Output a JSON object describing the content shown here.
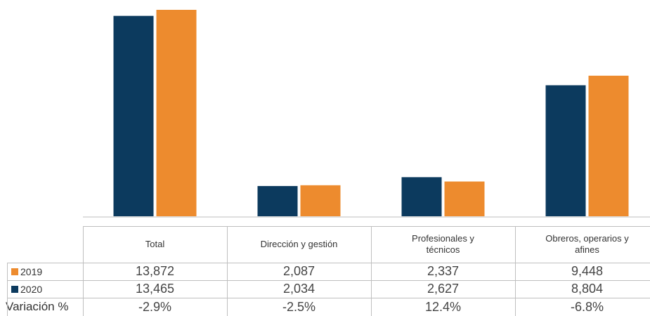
{
  "chart_data": {
    "type": "bar",
    "categories": [
      "Total",
      "Dirección y gestión",
      "Profesionales y técnicos",
      "Obreros, operarios y afines"
    ],
    "category_lines": [
      [
        "Total"
      ],
      [
        "Dirección y gestión"
      ],
      [
        "Profesionales y",
        "técnicos"
      ],
      [
        "Obreros, operarios y",
        "afines"
      ]
    ],
    "series": [
      {
        "name": "2019",
        "values": [
          13872,
          2087,
          2337,
          9448
        ],
        "labels": [
          "13,872",
          "2,087",
          "2,337",
          "9,448"
        ],
        "color": "#ED8B2E"
      },
      {
        "name": "2020",
        "values": [
          13465,
          2034,
          2627,
          8804
        ],
        "labels": [
          "13,465",
          "2,034",
          "2,627",
          "8,804"
        ],
        "color": "#0C3A5E"
      }
    ],
    "bar_order": [
      "2020",
      "2019"
    ],
    "variation": {
      "label": "Variación %",
      "values": [
        "-2.9%",
        "-2.5%",
        "12.4%",
        "-6.8%"
      ]
    },
    "ylim": [
      0,
      13872
    ],
    "grid": false,
    "legend": "table-rows"
  }
}
